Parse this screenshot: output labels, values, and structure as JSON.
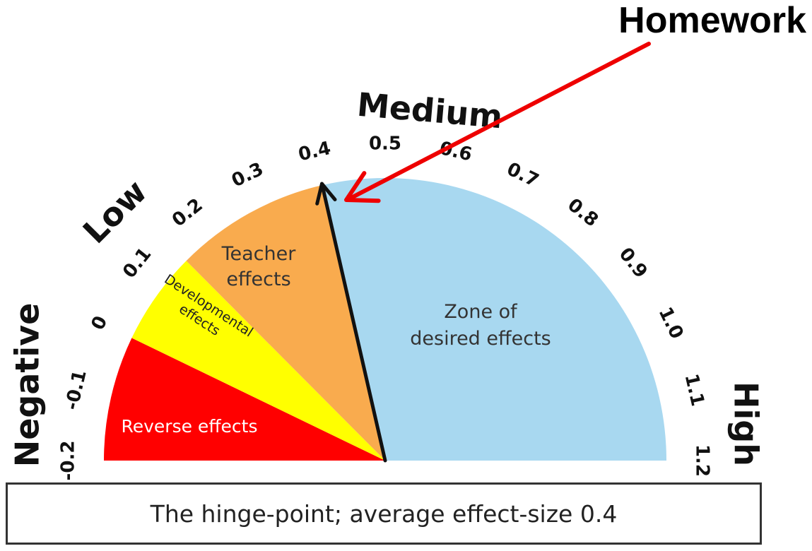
{
  "callout": {
    "label": "Homework"
  },
  "scale": {
    "min": -0.2,
    "max": 1.2,
    "hinge_point": 0.4,
    "ticks": [
      "-0.2",
      "-0.1",
      "0",
      "0.1",
      "0.2",
      "0.3",
      "0.4",
      "0.5",
      "0.6",
      "0.7",
      "0.8",
      "0.9",
      "1.0",
      "1.1",
      "1.2"
    ]
  },
  "categories": {
    "negative": "Negative",
    "low": "Low",
    "medium": "Medium",
    "high": "High"
  },
  "zones": [
    {
      "id": "reverse",
      "from": -0.2,
      "to": 0.0,
      "color": "#ff0000",
      "text_color": "#ffffff",
      "lines": [
        "Reverse effects"
      ]
    },
    {
      "id": "developmental",
      "from": 0.0,
      "to": 0.15,
      "color": "#ffff00",
      "text_color": "#222222",
      "lines": [
        "Developmental",
        "effects"
      ]
    },
    {
      "id": "teacher",
      "from": 0.15,
      "to": 0.4,
      "color": "#f9ab4e",
      "text_color": "#333333",
      "lines": [
        "Teacher",
        "effects"
      ]
    },
    {
      "id": "desired",
      "from": 0.4,
      "to": 1.2,
      "color": "#a8d8f0",
      "text_color": "#333333",
      "lines": [
        "Zone of",
        "desired effects"
      ]
    }
  ],
  "colors": {
    "callout_arrow": "#ee0000",
    "needle": "#111111"
  },
  "hinge": {
    "caption": "The hinge-point; average effect-size 0.4"
  }
}
